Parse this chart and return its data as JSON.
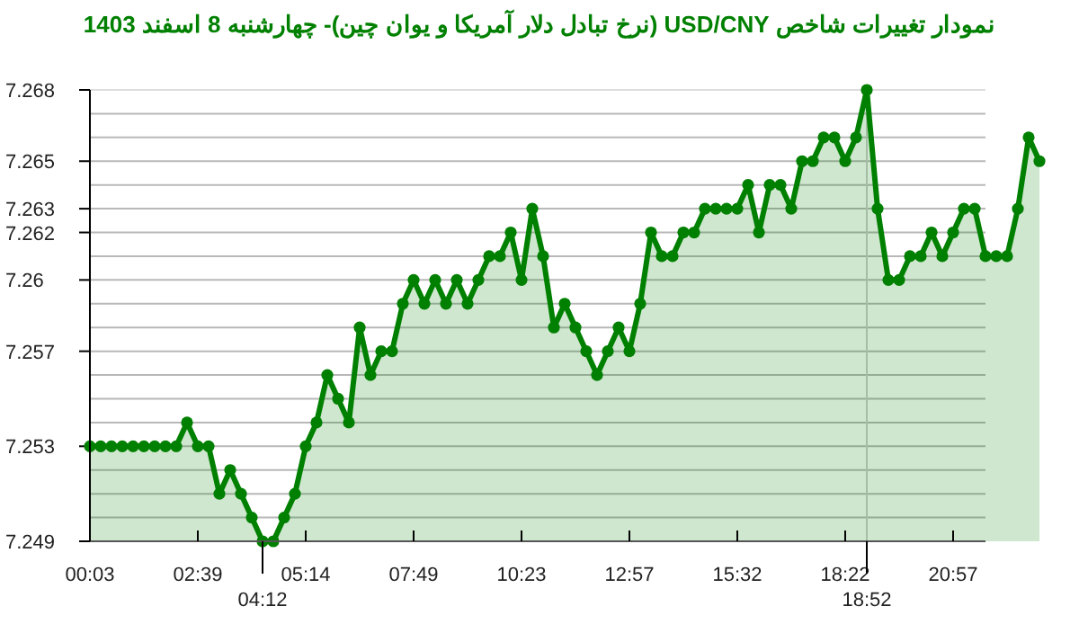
{
  "chart_data": {
    "type": "area",
    "title": "نمودار تغییرات شاخص USD/CNY (نرخ تبادل دلار آمریکا و یوان چین)- چهارشنبه  8 اسفند 1403",
    "categories": [
      "00:03",
      null,
      null,
      null,
      null,
      null,
      null,
      null,
      null,
      null,
      "02:39",
      null,
      null,
      null,
      null,
      null,
      "04:12",
      null,
      null,
      null,
      "05:14",
      null,
      null,
      null,
      null,
      null,
      null,
      null,
      null,
      null,
      "07:49",
      null,
      null,
      null,
      null,
      null,
      null,
      null,
      null,
      null,
      "10:23",
      null,
      null,
      null,
      null,
      null,
      null,
      null,
      null,
      null,
      "12:57",
      null,
      null,
      null,
      null,
      null,
      null,
      null,
      null,
      null,
      "15:32",
      null,
      null,
      null,
      null,
      null,
      null,
      null,
      null,
      null,
      "18:22",
      null,
      "18:52",
      null,
      null,
      null,
      null,
      null,
      null,
      null,
      "20:57",
      null,
      null,
      null,
      null,
      null,
      null,
      null,
      null
    ],
    "series": [
      {
        "color": "#008000",
        "values": [
          7.253,
          7.253,
          7.253,
          7.253,
          7.253,
          7.253,
          7.253,
          7.253,
          7.253,
          7.254,
          7.253,
          7.253,
          7.251,
          7.252,
          7.251,
          7.25,
          7.249,
          7.249,
          7.25,
          7.251,
          7.253,
          7.254,
          7.256,
          7.255,
          7.254,
          7.258,
          7.256,
          7.257,
          7.257,
          7.259,
          7.26,
          7.259,
          7.26,
          7.259,
          7.26,
          7.259,
          7.26,
          7.261,
          7.261,
          7.262,
          7.26,
          7.263,
          7.261,
          7.258,
          7.259,
          7.258,
          7.257,
          7.256,
          7.257,
          7.258,
          7.257,
          7.259,
          7.262,
          7.261,
          7.261,
          7.262,
          7.262,
          7.263,
          7.263,
          7.263,
          7.263,
          7.264,
          7.262,
          7.264,
          7.264,
          7.263,
          7.265,
          7.265,
          7.266,
          7.266,
          7.265,
          7.266,
          7.268,
          7.263,
          7.26,
          7.26,
          7.261,
          7.261,
          7.262,
          7.261,
          7.262,
          7.263,
          7.263,
          7.261,
          7.261,
          7.261,
          7.263,
          7.266,
          7.265
        ]
      }
    ],
    "ylim": [
      7.249,
      7.268
    ],
    "yticks": [
      7.249,
      {
        "value": 7.25,
        "label": null
      },
      {
        "value": 7.251,
        "label": null
      },
      {
        "value": 7.252,
        "label": null
      },
      7.253,
      {
        "value": 7.254,
        "label": null
      },
      {
        "value": 7.255,
        "label": null
      },
      {
        "value": 7.256,
        "label": null
      },
      7.257,
      {
        "value": 7.258,
        "label": null
      },
      {
        "value": 7.259,
        "label": null
      },
      7.26,
      {
        "value": 7.261,
        "label": null
      },
      7.262,
      7.263,
      {
        "value": 7.264,
        "label": null
      },
      7.265,
      {
        "value": 7.266,
        "label": null
      },
      {
        "value": 7.267,
        "label": null
      },
      7.268
    ],
    "ref_lines": [
      {
        "axis": "x",
        "value": "18:52",
        "color": "#cccccc"
      }
    ],
    "grid": "y",
    "marker": "circle",
    "line_style": "solid"
  }
}
